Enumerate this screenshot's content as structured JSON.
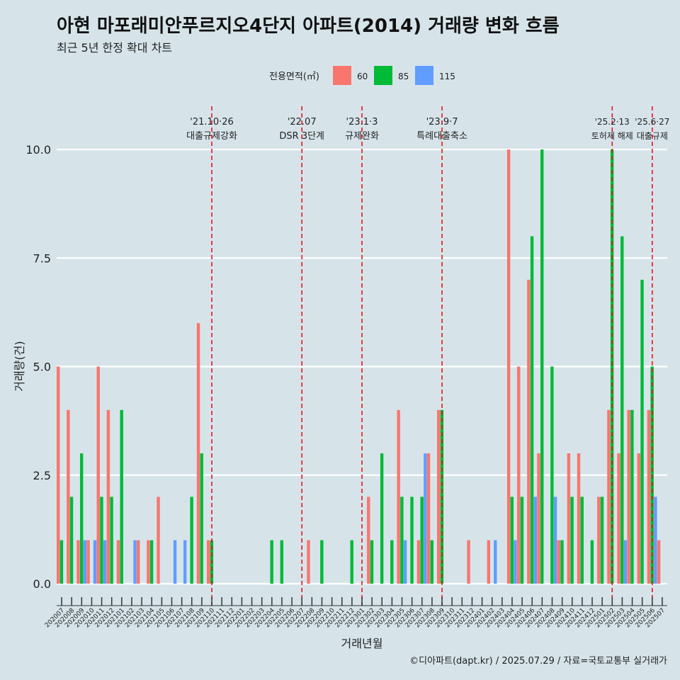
{
  "chart_data": {
    "type": "bar",
    "title": "아현 마포래미안푸르지오4단지 아파트(2014) 거래량 변화 흐름",
    "subtitle": "최근 5년 한정 확대 차트",
    "xlabel": "거래년월",
    "ylabel": "거래량(건)",
    "caption": "©디아파트(dapt.kr) / 2025.07.29 / 자료=국토교통부 실거래가",
    "legend": {
      "title": "전용면적(㎡)",
      "position": "top"
    },
    "ylim": [
      0,
      10
    ],
    "yticks": [
      "0.0",
      "2.5",
      "5.0",
      "7.5",
      "10.0"
    ],
    "grid": true,
    "categories": [
      "202007",
      "202008",
      "202009",
      "202010",
      "202011",
      "202012",
      "202101",
      "202102",
      "202103",
      "202104",
      "202105",
      "202106",
      "202107",
      "202108",
      "202109",
      "202110",
      "202111",
      "202112",
      "202201",
      "202202",
      "202203",
      "202204",
      "202205",
      "202206",
      "202207",
      "202208",
      "202209",
      "202210",
      "202211",
      "202212",
      "202301",
      "202302",
      "202303",
      "202304",
      "202305",
      "202306",
      "202307",
      "202308",
      "202309",
      "202310",
      "202311",
      "202312",
      "202401",
      "202402",
      "202403",
      "202404",
      "202405",
      "202406",
      "202407",
      "202408",
      "202409",
      "202410",
      "202411",
      "202412",
      "202501",
      "202502",
      "202503",
      "202504",
      "202505",
      "202506",
      "202507"
    ],
    "series": [
      {
        "name": "60",
        "color": "#f8766d",
        "values": [
          5,
          4,
          1,
          1,
          5,
          4,
          1,
          0,
          1,
          1,
          2,
          0,
          0,
          0,
          6,
          1,
          0,
          0,
          0,
          0,
          0,
          0,
          0,
          0,
          0,
          1,
          0,
          0,
          0,
          0,
          0,
          2,
          0,
          0,
          4,
          0,
          1,
          3,
          4,
          0,
          0,
          1,
          0,
          1,
          0,
          10,
          5,
          7,
          3,
          0,
          1,
          3,
          3,
          0,
          2,
          4,
          3,
          4,
          3,
          4,
          1
        ]
      },
      {
        "name": "85",
        "color": "#00ba38",
        "values": [
          1,
          2,
          3,
          0,
          2,
          2,
          4,
          0,
          0,
          1,
          0,
          0,
          0,
          2,
          3,
          1,
          0,
          0,
          0,
          0,
          0,
          1,
          1,
          0,
          0,
          0,
          1,
          0,
          0,
          1,
          0,
          1,
          3,
          1,
          2,
          2,
          2,
          1,
          4,
          0,
          0,
          0,
          0,
          0,
          0,
          2,
          2,
          8,
          10,
          5,
          1,
          2,
          2,
          1,
          2,
          10,
          8,
          4,
          7,
          5,
          0
        ]
      },
      {
        "name": "115",
        "color": "#619cff",
        "values": [
          0,
          0,
          1,
          1,
          1,
          0,
          0,
          1,
          0,
          0,
          0,
          1,
          1,
          0,
          0,
          0,
          0,
          0,
          0,
          0,
          0,
          0,
          0,
          0,
          0,
          0,
          0,
          0,
          0,
          0,
          0,
          0,
          0,
          0,
          1,
          0,
          3,
          0,
          0,
          0,
          0,
          0,
          0,
          1,
          0,
          1,
          0,
          2,
          0,
          2,
          0,
          0,
          0,
          0,
          0,
          0,
          1,
          0,
          0,
          2,
          0
        ]
      }
    ],
    "events": [
      {
        "category": "202110",
        "date": "'21.10·26",
        "label": "대출규제강화"
      },
      {
        "category": "202207",
        "date": "'22.07",
        "label": "DSR 3단계"
      },
      {
        "category": "202301",
        "date": "'23.1·3",
        "label": "규제완화"
      },
      {
        "category": "202309",
        "date": "'23.9·7",
        "label": "특례대출축소"
      },
      {
        "category": "202502",
        "date": "'25.2·13",
        "label": "토허제 해제"
      },
      {
        "category": "202506",
        "date": "'25.6·27",
        "label": "대출규제"
      }
    ]
  }
}
